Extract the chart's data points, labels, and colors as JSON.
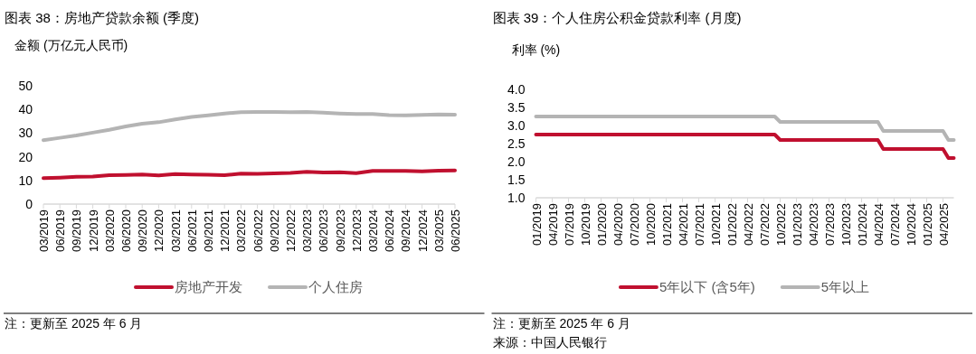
{
  "chart_data": [
    {
      "type": "line",
      "title": "图表 38：房地产贷款余额 (季度)",
      "ylabel": "金额 (万亿元人民币)",
      "categories": [
        "03/2019",
        "06/2019",
        "09/2019",
        "12/2019",
        "03/2020",
        "06/2020",
        "09/2020",
        "12/2020",
        "03/2021",
        "06/2021",
        "09/2021",
        "12/2021",
        "03/2022",
        "06/2022",
        "09/2022",
        "12/2022",
        "03/2023",
        "06/2023",
        "09/2023",
        "12/2023",
        "03/2024",
        "06/2024",
        "09/2024",
        "12/2024",
        "03/2025",
        "06/2025"
      ],
      "series": [
        {
          "name": "房地产开发",
          "color": "#c0102f",
          "values": [
            11,
            11.2,
            11.5,
            11.6,
            12.2,
            12.3,
            12.5,
            12.1,
            12.7,
            12.5,
            12.4,
            12.2,
            12.9,
            12.8,
            13.0,
            13.2,
            13.6,
            13.4,
            13.5,
            13.1,
            14.0,
            14.0,
            14.0,
            13.8,
            14.1,
            14.2
          ]
        },
        {
          "name": "个人住房",
          "color": "#b4b4b4",
          "values": [
            27,
            28,
            29,
            30.2,
            31.4,
            32.8,
            34,
            34.6,
            35.8,
            36.8,
            37.5,
            38.3,
            38.8,
            38.9,
            38.9,
            38.8,
            38.9,
            38.6,
            38.3,
            38.1,
            38.1,
            37.6,
            37.5,
            37.7,
            37.9,
            37.8
          ]
        }
      ],
      "ylim": [
        0,
        50
      ],
      "yticks": [
        0,
        10,
        20,
        30,
        40,
        50
      ],
      "legend": "bottom",
      "annotations": [
        "注：更新至 2025 年 6 月"
      ]
    },
    {
      "type": "line",
      "title": "图表 39：个人住房公积金贷款利率 (月度)",
      "ylabel": "利率 (%)",
      "categories": [
        "01/2019",
        null,
        null,
        "04/2019",
        null,
        null,
        "07/2019",
        null,
        null,
        "10/2019",
        null,
        null,
        "01/2020",
        null,
        null,
        "04/2020",
        null,
        null,
        "07/2020",
        null,
        null,
        "10/2020",
        null,
        null,
        "01/2021",
        null,
        null,
        "04/2021",
        null,
        null,
        "07/2021",
        null,
        null,
        "10/2021",
        null,
        null,
        "01/2022",
        null,
        null,
        "04/2022",
        null,
        null,
        "07/2022",
        null,
        null,
        "10/2022",
        null,
        null,
        "01/2023",
        null,
        null,
        "04/2023",
        null,
        null,
        "07/2023",
        null,
        null,
        "10/2023",
        null,
        null,
        "01/2024",
        null,
        null,
        "04/2024",
        null,
        null,
        "07/2024",
        null,
        null,
        "10/2024",
        null,
        null,
        "01/2025",
        null,
        null,
        "04/2025",
        null,
        null
      ],
      "series": [
        {
          "name": "5年以下 (含5年)",
          "color": "#c0102f",
          "values": [
            2.75,
            2.75,
            2.75,
            2.75,
            2.75,
            2.75,
            2.75,
            2.75,
            2.75,
            2.75,
            2.75,
            2.75,
            2.75,
            2.75,
            2.75,
            2.75,
            2.75,
            2.75,
            2.75,
            2.75,
            2.75,
            2.75,
            2.75,
            2.75,
            2.75,
            2.75,
            2.75,
            2.75,
            2.75,
            2.75,
            2.75,
            2.75,
            2.75,
            2.75,
            2.75,
            2.75,
            2.75,
            2.75,
            2.75,
            2.75,
            2.75,
            2.75,
            2.75,
            2.75,
            2.75,
            2.6,
            2.6,
            2.6,
            2.6,
            2.6,
            2.6,
            2.6,
            2.6,
            2.6,
            2.6,
            2.6,
            2.6,
            2.6,
            2.6,
            2.6,
            2.6,
            2.6,
            2.6,
            2.6,
            2.35,
            2.35,
            2.35,
            2.35,
            2.35,
            2.35,
            2.35,
            2.35,
            2.35,
            2.35,
            2.35,
            2.35,
            2.1,
            2.1
          ]
        },
        {
          "name": "5年以上",
          "color": "#b4b4b4",
          "values": [
            3.25,
            3.25,
            3.25,
            3.25,
            3.25,
            3.25,
            3.25,
            3.25,
            3.25,
            3.25,
            3.25,
            3.25,
            3.25,
            3.25,
            3.25,
            3.25,
            3.25,
            3.25,
            3.25,
            3.25,
            3.25,
            3.25,
            3.25,
            3.25,
            3.25,
            3.25,
            3.25,
            3.25,
            3.25,
            3.25,
            3.25,
            3.25,
            3.25,
            3.25,
            3.25,
            3.25,
            3.25,
            3.25,
            3.25,
            3.25,
            3.25,
            3.25,
            3.25,
            3.25,
            3.25,
            3.1,
            3.1,
            3.1,
            3.1,
            3.1,
            3.1,
            3.1,
            3.1,
            3.1,
            3.1,
            3.1,
            3.1,
            3.1,
            3.1,
            3.1,
            3.1,
            3.1,
            3.1,
            3.1,
            2.85,
            2.85,
            2.85,
            2.85,
            2.85,
            2.85,
            2.85,
            2.85,
            2.85,
            2.85,
            2.85,
            2.85,
            2.6,
            2.6
          ]
        }
      ],
      "ylim": [
        1,
        4
      ],
      "yticks": [
        {
          "value": 1,
          "label": "1.0"
        },
        {
          "value": 1.5,
          "label": "1.5"
        },
        {
          "value": 2,
          "label": "2.0"
        },
        {
          "value": 2.5,
          "label": "2.5"
        },
        {
          "value": 3,
          "label": "3.0"
        },
        {
          "value": 3.5,
          "label": "3.5"
        },
        {
          "value": 4,
          "label": "4.0"
        }
      ],
      "legend": "bottom",
      "annotations": [
        "注：更新至 2025 年 6 月",
        "来源：中国人民银行"
      ]
    }
  ]
}
